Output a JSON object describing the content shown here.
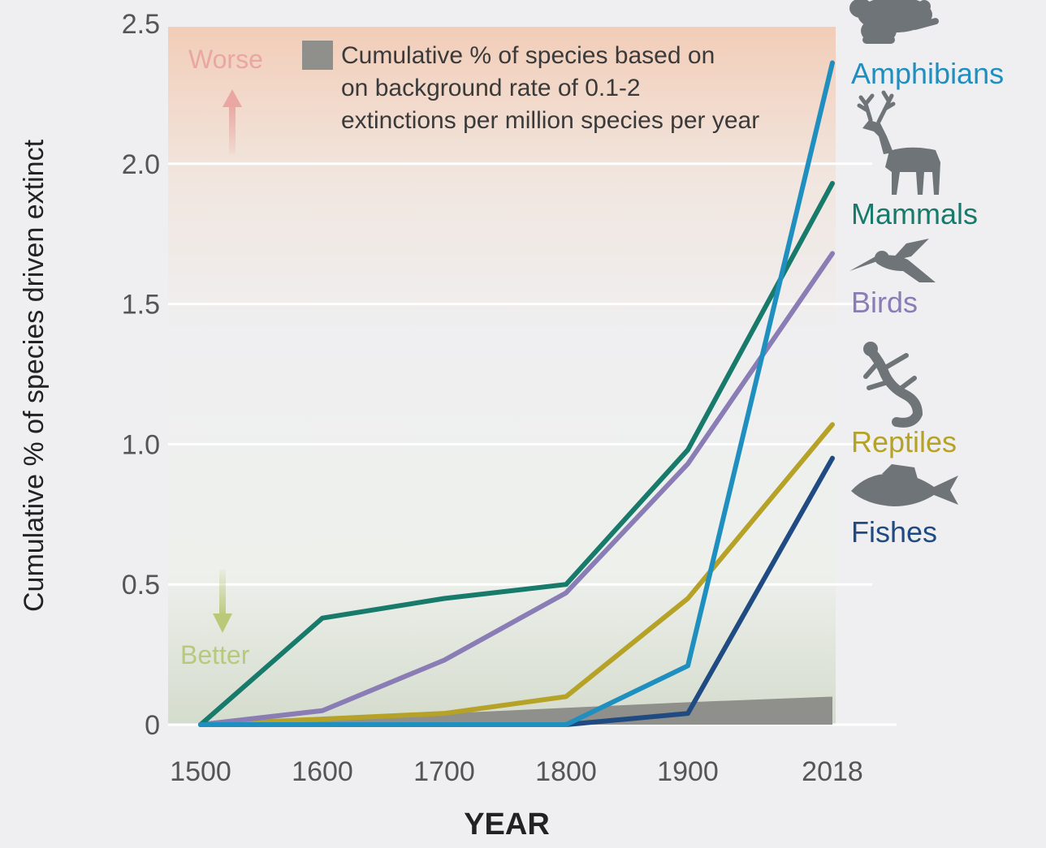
{
  "chart_data": {
    "type": "line",
    "title": "",
    "xlabel": "YEAR",
    "ylabel": "Cumulative % of species driven extinct",
    "x": [
      1500,
      1600,
      1700,
      1800,
      1900,
      2018
    ],
    "xticks": [
      "1500",
      "1600",
      "1700",
      "1800",
      "1900",
      "2018"
    ],
    "yticks": [
      "0",
      "0.5",
      "1.0",
      "1.5",
      "2.0",
      "2.5"
    ],
    "ylim": [
      0,
      2.5
    ],
    "grid": true,
    "series": [
      {
        "name": "Amphibians",
        "color": "#1f8fc0",
        "values": [
          0,
          0,
          0,
          0,
          0.21,
          2.36
        ]
      },
      {
        "name": "Mammals",
        "color": "#177a6a",
        "values": [
          0,
          0.38,
          0.45,
          0.5,
          0.98,
          1.93
        ]
      },
      {
        "name": "Birds",
        "color": "#8a7cb5",
        "values": [
          0,
          0.05,
          0.23,
          0.47,
          0.93,
          1.68
        ]
      },
      {
        "name": "Reptiles",
        "color": "#b5a227",
        "values": [
          0,
          0.02,
          0.04,
          0.1,
          0.45,
          1.07
        ]
      },
      {
        "name": "Fishes",
        "color": "#1f4b82",
        "values": [
          0,
          0,
          0,
          0,
          0.04,
          0.95
        ]
      }
    ],
    "background": {
      "label": "Cumulative % of species based on on background rate of 0.1-2 extinctions per million species per year",
      "label_lines": [
        "Cumulative % of species based on",
        "on background rate of 0.1-2",
        "extinctions per million species per year"
      ],
      "color": "#8f8f8b",
      "values": [
        0,
        0.02,
        0.04,
        0.06,
        0.08,
        0.1
      ]
    },
    "annotations": {
      "worse": "Worse",
      "better": "Better",
      "worse_color": "#e9a6a2",
      "better_color": "#b8c97a"
    },
    "legend_placement": "right, at line ends with animal icons",
    "icons": [
      "frog-icon",
      "deer-icon",
      "hummingbird-icon",
      "lizard-icon",
      "fish-icon"
    ]
  }
}
